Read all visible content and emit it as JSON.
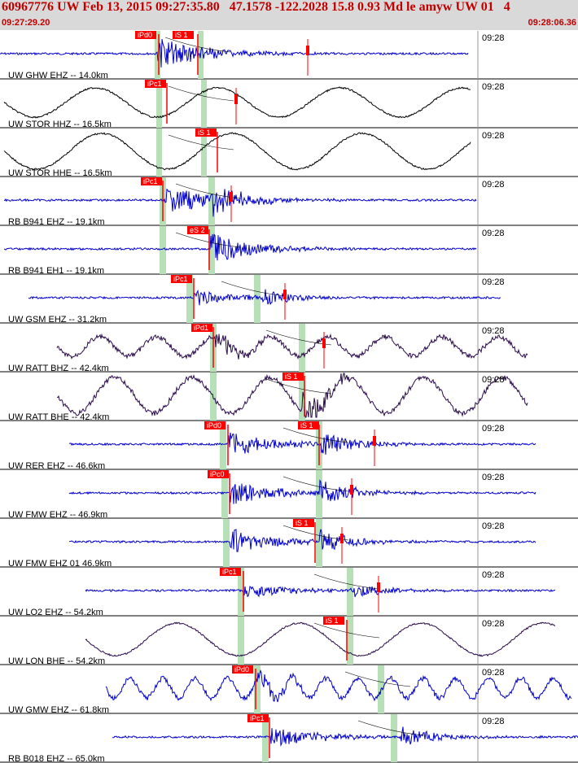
{
  "header": {
    "title": "60967776 UW Feb 13, 2015 09:27:35.80   47.1578 -122.2028 15.8 0.93 Md le amyw UW 01   4",
    "start_time": "09:27:29.20",
    "end_time": "09:28:06.36"
  },
  "colors": {
    "header_bg": "#d9d9d9",
    "header_text": "#c00000",
    "trace_blue": "#0000cc",
    "trace_black": "#000000",
    "trace_purple": "#2a0a4a",
    "pick": "#ff0000",
    "window": "#b8e0b8"
  },
  "traces": [
    {
      "label": "UW GHW EHZ -- 14.0km",
      "time": "09:28",
      "color": "blue",
      "picks": [
        "iPd0",
        "iS 1"
      ]
    },
    {
      "label": "UW STOR HHZ -- 16.5km",
      "time": "09:28",
      "color": "black",
      "picks": [
        "iPc1"
      ]
    },
    {
      "label": "UW STOR HHE -- 16.5km",
      "time": "09:28",
      "color": "black",
      "picks": [
        "iS 1"
      ]
    },
    {
      "label": "RB B941 EHZ -- 19.1km",
      "time": "09:28",
      "color": "blue",
      "picks": [
        "iPc1"
      ]
    },
    {
      "label": "RB B941 EH1 -- 19.1km",
      "time": "09:28",
      "color": "blue",
      "picks": [
        "eS 2"
      ]
    },
    {
      "label": "UW GSM EHZ -- 31.2km",
      "time": "09:28",
      "color": "blue",
      "picks": [
        "iPc1"
      ]
    },
    {
      "label": "UW RATT BHZ -- 42.4km",
      "time": "09:28",
      "color": "purple",
      "picks": [
        "iPd1"
      ]
    },
    {
      "label": "UW RATT BHE -- 42.4km",
      "time": "09:28",
      "color": "purple",
      "picks": [
        "iS 1"
      ]
    },
    {
      "label": "UW RER EHZ -- 46.6km",
      "time": "09:28",
      "color": "blue",
      "picks": [
        "iPd0",
        "iS 1"
      ]
    },
    {
      "label": "UW FMW EHZ -- 46.9km",
      "time": "09:28",
      "color": "blue",
      "picks": [
        "iPc0"
      ]
    },
    {
      "label": "UW FMW EHZ 01 46.9km",
      "time": "09:28",
      "color": "blue",
      "picks": [
        "iS 1"
      ]
    },
    {
      "label": "UW LO2 EHZ -- 54.2km",
      "time": "09:28",
      "color": "blue",
      "picks": [
        "iPc1"
      ]
    },
    {
      "label": "UW LON BHE -- 54.2km",
      "time": "09:28",
      "color": "purple",
      "picks": [
        "iS 1"
      ]
    },
    {
      "label": "UW GMW EHZ -- 61.8km",
      "time": "09:28",
      "color": "blue",
      "picks": [
        "iPd0"
      ]
    },
    {
      "label": "RB B018 EHZ -- 65.0km",
      "time": "09:28",
      "color": "blue",
      "picks": [
        "iPc1"
      ]
    }
  ]
}
